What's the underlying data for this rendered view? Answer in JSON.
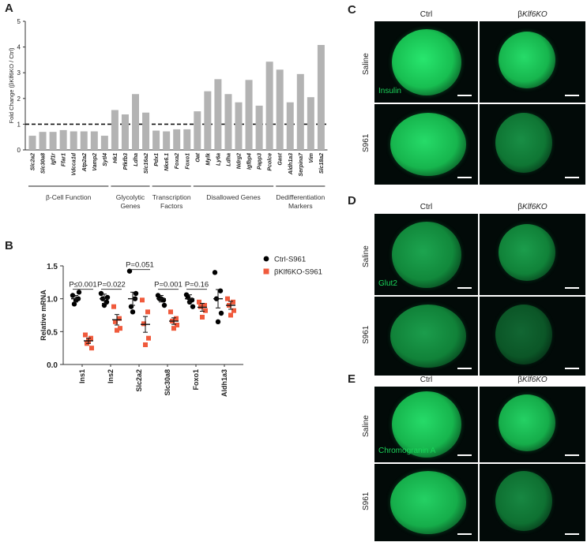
{
  "panels": {
    "A": "A",
    "B": "B",
    "C": "C",
    "D": "D",
    "E": "E"
  },
  "chart_data": [
    {
      "type": "bar",
      "panel": "A",
      "ylabel": "Fold Change (βKlf6KO / Ctrl)",
      "ylim": [
        0,
        5
      ],
      "yticks": [
        "0",
        "1",
        "2",
        "3",
        "4",
        "5"
      ],
      "reference_line": 1,
      "categories": [
        "Slc2a2",
        "Slc30a8",
        "Igf1r",
        "Ffar1",
        "Vdcca1d",
        "Atp2a2",
        "Vamp2",
        "Sytl4",
        "Hk1",
        "Pfkfb3",
        "Ldha",
        "Slc16a2",
        "Pdx1",
        "Nkx6.1",
        "Foxa2",
        "Foxo1",
        "Oat",
        "Mylk",
        "Ly6a",
        "Ldha",
        "Ndrg2",
        "Igfbp4",
        "Papp3",
        "Pcolce",
        "Gast",
        "Aldh1a3",
        "Serpina7",
        "Vim",
        "Slc18a2"
      ],
      "values": [
        0.55,
        0.7,
        0.7,
        0.77,
        0.72,
        0.72,
        0.72,
        0.55,
        1.55,
        1.38,
        2.17,
        1.45,
        0.75,
        0.72,
        0.8,
        0.8,
        1.5,
        2.28,
        2.75,
        2.17,
        1.85,
        2.72,
        1.72,
        3.43,
        3.12,
        1.85,
        2.95,
        2.05,
        4.08
      ],
      "groups": [
        {
          "label": "β-Cell Function",
          "start": 0,
          "end": 7
        },
        {
          "label": "Glycolytic Genes",
          "start": 8,
          "end": 11
        },
        {
          "label": "Transcription Factors",
          "start": 12,
          "end": 15
        },
        {
          "label": "Disallowed Genes",
          "start": 16,
          "end": 23
        },
        {
          "label": "Dedifferentiation Markers",
          "start": 24,
          "end": 28
        }
      ],
      "bar_color": "#b3b3b3"
    },
    {
      "type": "scatter",
      "panel": "B",
      "ylabel": "Relative mRNA",
      "ylim": [
        0,
        1.5
      ],
      "yticks": [
        "0.0",
        "0.5",
        "1.0",
        "1.5"
      ],
      "categories": [
        "Ins1",
        "Ins2",
        "Slc2a2",
        "Slc30a8",
        "Foxo1",
        "Aldh1a3"
      ],
      "series": [
        {
          "name": "Ctrl-S961",
          "color": "#000000",
          "means": [
            1.0,
            1.0,
            1.0,
            1.0,
            1.0,
            1.0
          ],
          "sem": [
            0.05,
            0.07,
            0.1,
            0.05,
            0.06,
            0.14
          ],
          "points": [
            [
              1.05,
              1.0,
              0.92,
              1.1,
              0.98
            ],
            [
              1.08,
              0.95,
              1.0,
              1.02,
              0.9
            ],
            [
              1.42,
              1.0,
              0.88,
              1.08,
              0.8
            ],
            [
              1.05,
              0.98,
              1.0,
              0.9,
              1.0
            ],
            [
              1.06,
              0.98,
              1.02,
              0.88,
              0.95
            ],
            [
              1.4,
              1.12,
              1.0,
              0.78,
              0.65
            ]
          ]
        },
        {
          "name": "βKlf6KO-S961",
          "color": "#f05a3c",
          "means": [
            0.36,
            0.68,
            0.61,
            0.66,
            0.87,
            0.9
          ],
          "sem": [
            0.04,
            0.08,
            0.12,
            0.05,
            0.06,
            0.06
          ],
          "points": [
            [
              0.45,
              0.4,
              0.32,
              0.25,
              0.36
            ],
            [
              0.88,
              0.7,
              0.65,
              0.55,
              0.52
            ],
            [
              0.98,
              0.8,
              0.62,
              0.4,
              0.3
            ],
            [
              0.8,
              0.7,
              0.66,
              0.6,
              0.55
            ],
            [
              0.95,
              0.9,
              0.88,
              0.82,
              0.72
            ],
            [
              1.0,
              0.95,
              0.9,
              0.82,
              0.75
            ]
          ]
        }
      ],
      "annotations": [
        "P≤0.001",
        "P=0.022",
        "P=0.051",
        "P=0.001",
        "P=0.16",
        ""
      ]
    }
  ],
  "microscopy": {
    "col_ctrl": "Ctrl",
    "col_ko_prefix": "β",
    "col_ko_italic": "Klf6KO",
    "row_saline": "Saline",
    "row_s961": "S961",
    "stain_C": "Insulin",
    "stain_D": "Glut2",
    "stain_E": "Chromogranin A"
  }
}
